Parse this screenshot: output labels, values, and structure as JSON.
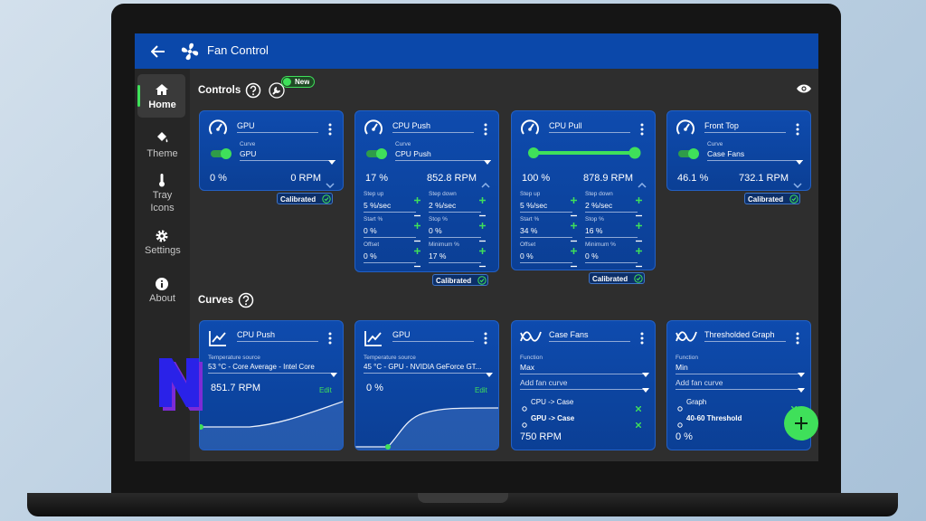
{
  "header": {
    "title": "Fan Control"
  },
  "sidebar": {
    "items": [
      "Home",
      "Theme",
      "Tray Icons",
      "Settings",
      "About"
    ]
  },
  "controls": {
    "title": "Controls",
    "badge": "New",
    "cards": [
      {
        "name": "GPU",
        "curve_label": "Curve",
        "curve": "GPU",
        "percent": "0 %",
        "rpm": "0 RPM",
        "badge": "Calibrated"
      },
      {
        "name": "CPU Push",
        "curve_label": "Curve",
        "curve": "CPU Push",
        "percent": "17 %",
        "rpm": "852.8 RPM",
        "fields": [
          {
            "label": "Step up",
            "value": "5 %/sec"
          },
          {
            "label": "Step down",
            "value": "2 %/sec"
          },
          {
            "label": "Start %",
            "value": "0 %"
          },
          {
            "label": "Stop %",
            "value": "0 %"
          },
          {
            "label": "Offset",
            "value": "0 %"
          },
          {
            "label": "Minimum %",
            "value": "17 %"
          }
        ],
        "badge": "Calibrated"
      },
      {
        "name": "CPU Pull",
        "percent": "100 %",
        "rpm": "878.9 RPM",
        "fields": [
          {
            "label": "Step up",
            "value": "5 %/sec"
          },
          {
            "label": "Step down",
            "value": "2 %/sec"
          },
          {
            "label": "Start %",
            "value": "34 %"
          },
          {
            "label": "Stop %",
            "value": "16 %"
          },
          {
            "label": "Offset",
            "value": "0 %"
          },
          {
            "label": "Minimum %",
            "value": "0 %"
          }
        ],
        "badge": "Calibrated"
      },
      {
        "name": "Front Top",
        "curve_label": "Curve",
        "curve": "Case Fans",
        "percent": "46.1 %",
        "rpm": "732.1 RPM",
        "badge": "Calibrated"
      }
    ]
  },
  "curves": {
    "title": "Curves",
    "cards": [
      {
        "name": "CPU Push",
        "source_label": "Temperature source",
        "source": "53 °C - Core Average - Intel Core",
        "reading": "851.7 RPM",
        "action": "Edit"
      },
      {
        "name": "GPU",
        "source_label": "Temperature source",
        "source": "45 °C - GPU - NVIDIA GeForce GT...",
        "reading": "0 %",
        "action": "Edit"
      },
      {
        "name": "Case Fans",
        "function_label": "Function",
        "function": "Max",
        "add": "Add fan curve",
        "items": [
          "CPU -> Case",
          "GPU -> Case"
        ],
        "reading": "750 RPM"
      },
      {
        "name": "Thresholded Graph",
        "function_label": "Function",
        "function": "Min",
        "add": "Add fan curve",
        "items": [
          "Graph",
          "40-60 Threshold"
        ],
        "reading": "0 %"
      }
    ]
  }
}
